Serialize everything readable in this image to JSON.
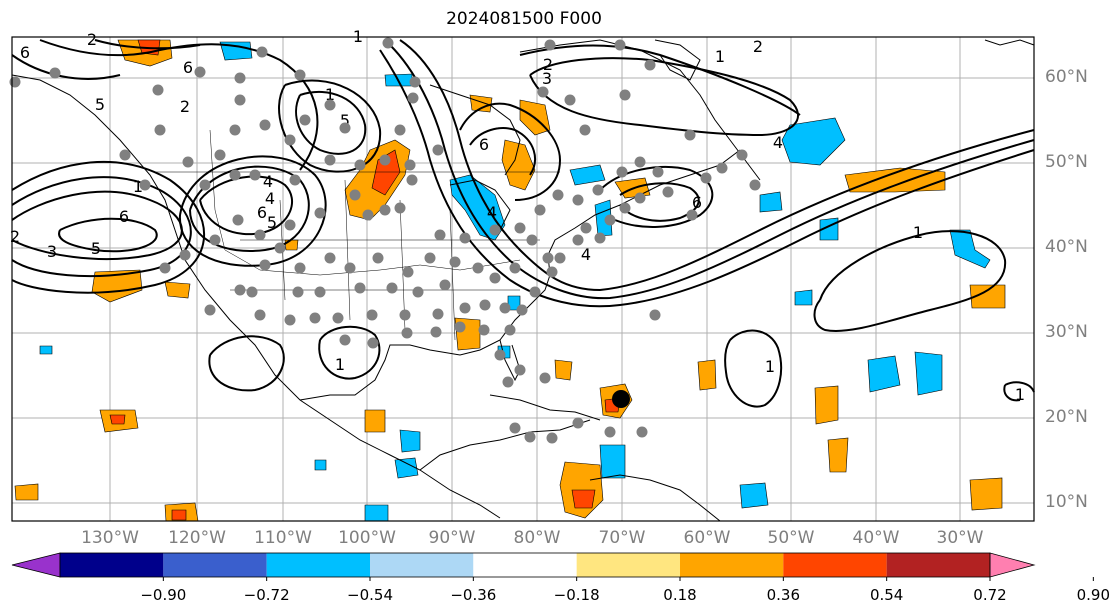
{
  "map": {
    "title": "2024081500 F000",
    "lat_labels": [
      "60°N",
      "50°N",
      "40°N",
      "30°N",
      "20°N",
      "10°N"
    ],
    "lon_labels": [
      "130°W",
      "120°W",
      "110°W",
      "100°W",
      "90°W",
      "80°W",
      "70°W",
      "60°W",
      "50°W",
      "40°W",
      "30°W"
    ],
    "contour_labels": [
      "6",
      "2",
      "1",
      "5",
      "6",
      "2",
      "1",
      "2",
      "1",
      "5",
      "3",
      "2",
      "6",
      "4",
      "6",
      "4",
      "4",
      "6",
      "1",
      "6",
      "5",
      "2",
      "3",
      "5",
      "4",
      "4",
      "1",
      "1",
      "1",
      "1"
    ],
    "storm_marker": {
      "lon": -68.5,
      "lat": 22.5
    },
    "observation_points": "gray station dots over North America and Caribbean",
    "colors": {
      "gridline": "#b0b0b0",
      "contour": "#000000",
      "axis_label": "#7f7f7f",
      "storm": "#000000",
      "station": "#808080"
    }
  },
  "colorbar": {
    "ticks": [
      "−0.90",
      "−0.72",
      "−0.54",
      "−0.36",
      "−0.18",
      "0.18",
      "0.36",
      "0.54",
      "0.72",
      "0.90"
    ],
    "colors": [
      "#9932cc",
      "#00008b",
      "#3a5fcd",
      "#00bfff",
      "#add8f5",
      "#ffffff",
      "#ffe680",
      "#ffa500",
      "#ff4500",
      "#b22222",
      "#ff7fb0"
    ]
  }
}
